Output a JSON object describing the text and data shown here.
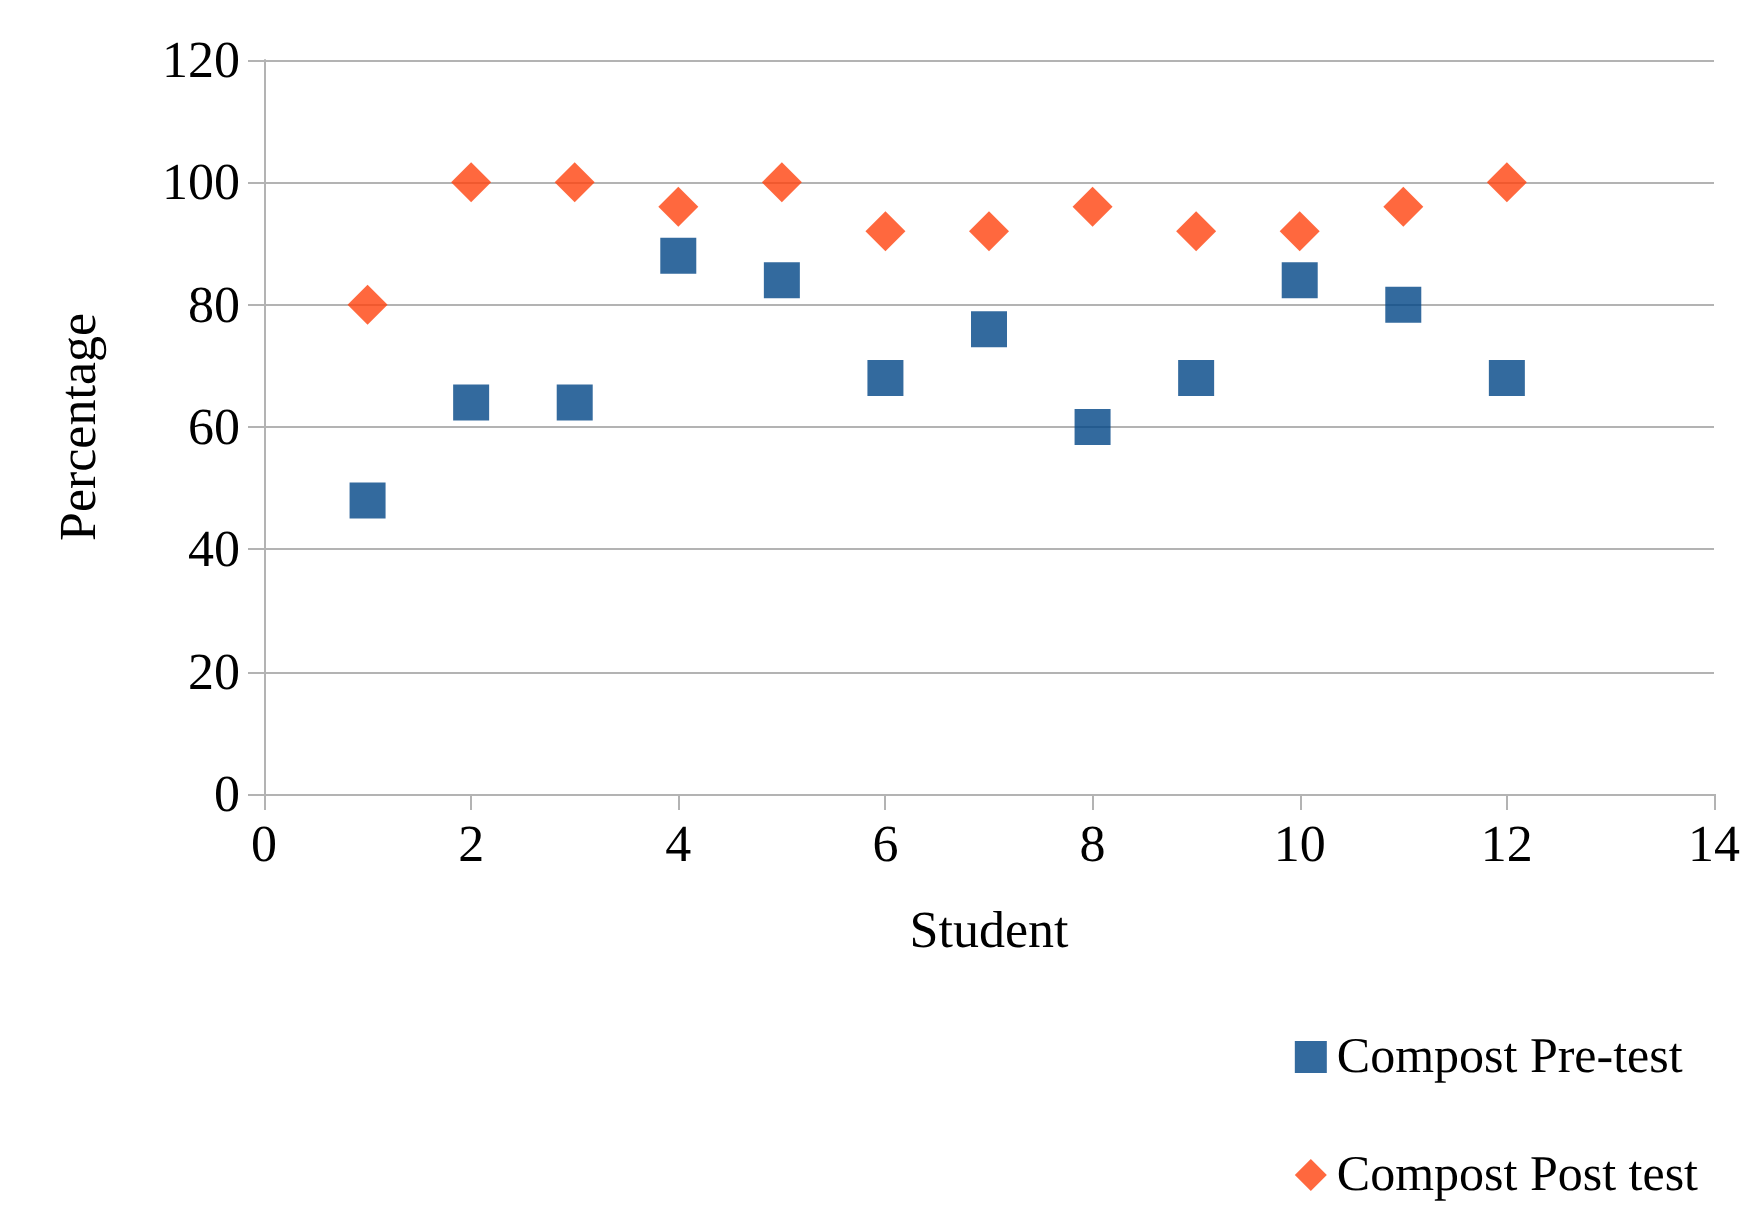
{
  "chart_data": {
    "type": "scatter",
    "xlabel": "Student",
    "ylabel": "Percentage",
    "x": [
      1,
      2,
      3,
      4,
      5,
      6,
      7,
      8,
      9,
      10,
      11,
      12
    ],
    "series": [
      {
        "name": "Compost Pre-test",
        "color": "#004586",
        "marker": "square",
        "values": [
          48,
          64,
          64,
          88,
          84,
          68,
          76,
          60,
          68,
          84,
          80,
          68
        ]
      },
      {
        "name": "Compost Post test",
        "color": "#ff420e",
        "marker": "diamond",
        "values": [
          80,
          100,
          100,
          96,
          100,
          92,
          92,
          96,
          92,
          92,
          96,
          100
        ]
      }
    ],
    "xlim": [
      0,
      14
    ],
    "xticks": [
      0,
      2,
      4,
      6,
      8,
      10,
      12,
      14
    ],
    "ylim": [
      0,
      120
    ],
    "yticks": [
      0,
      20,
      40,
      60,
      80,
      100,
      120
    ],
    "grid": "y",
    "legend": "bottom right"
  }
}
